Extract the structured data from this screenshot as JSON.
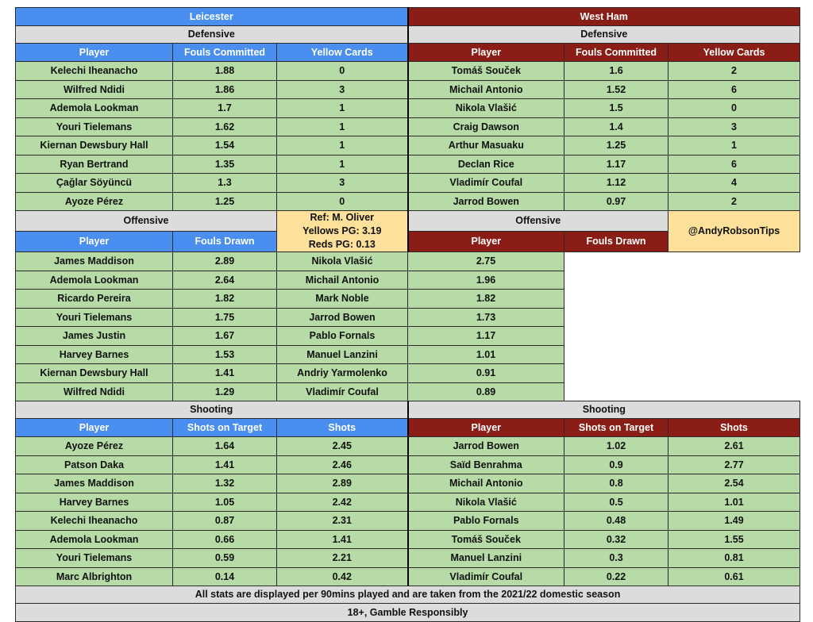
{
  "teams": {
    "home": "Leicester",
    "away": "West Ham"
  },
  "sections": {
    "defensive": "Defensive",
    "offensive": "Offensive",
    "shooting": "Shooting"
  },
  "columns": {
    "player": "Player",
    "fouls_committed": "Fouls Committed",
    "yellow_cards": "Yellow Cards",
    "fouls_drawn": "Fouls Drawn",
    "shots_on_target": "Shots on Target",
    "shots": "Shots"
  },
  "defensive": {
    "home": [
      {
        "player": "Kelechi Iheanacho",
        "fouls": "1.88",
        "yellows": "0"
      },
      {
        "player": "Wilfred Ndidi",
        "fouls": "1.86",
        "yellows": "3"
      },
      {
        "player": "Ademola Lookman",
        "fouls": "1.7",
        "yellows": "1"
      },
      {
        "player": "Youri Tielemans",
        "fouls": "1.62",
        "yellows": "1"
      },
      {
        "player": "Kiernan Dewsbury Hall",
        "fouls": "1.54",
        "yellows": "1"
      },
      {
        "player": "Ryan Bertrand",
        "fouls": "1.35",
        "yellows": "1"
      },
      {
        "player": "Çağlar Söyüncü",
        "fouls": "1.3",
        "yellows": "3"
      },
      {
        "player": "Ayoze Pérez",
        "fouls": "1.25",
        "yellows": "0"
      }
    ],
    "away": [
      {
        "player": "Tomáš Souček",
        "fouls": "1.6",
        "yellows": "2"
      },
      {
        "player": "Michail Antonio",
        "fouls": "1.52",
        "yellows": "6"
      },
      {
        "player": "Nikola Vlašić",
        "fouls": "1.5",
        "yellows": "0"
      },
      {
        "player": "Craig Dawson",
        "fouls": "1.4",
        "yellows": "3"
      },
      {
        "player": "Arthur Masuaku",
        "fouls": "1.25",
        "yellows": "1"
      },
      {
        "player": "Declan Rice",
        "fouls": "1.17",
        "yellows": "6"
      },
      {
        "player": "Vladimír Coufal",
        "fouls": "1.12",
        "yellows": "4"
      },
      {
        "player": "Jarrod Bowen",
        "fouls": "0.97",
        "yellows": "2"
      }
    ]
  },
  "offensive": {
    "home": [
      {
        "player": "James Maddison",
        "drawn": "2.89"
      },
      {
        "player": "Ademola Lookman",
        "drawn": "2.64"
      },
      {
        "player": "Ricardo Pereira",
        "drawn": "1.82"
      },
      {
        "player": "Youri Tielemans",
        "drawn": "1.75"
      },
      {
        "player": "James Justin",
        "drawn": "1.67"
      },
      {
        "player": "Harvey Barnes",
        "drawn": "1.53"
      },
      {
        "player": "Kiernan Dewsbury Hall",
        "drawn": "1.41"
      },
      {
        "player": "Wilfred Ndidi",
        "drawn": "1.29"
      }
    ],
    "away": [
      {
        "player": "Nikola Vlašić",
        "drawn": "2.75"
      },
      {
        "player": "Michail Antonio",
        "drawn": "1.96"
      },
      {
        "player": "Mark Noble",
        "drawn": "1.82"
      },
      {
        "player": "Jarrod Bowen",
        "drawn": "1.73"
      },
      {
        "player": "Pablo Fornals",
        "drawn": "1.17"
      },
      {
        "player": "Manuel Lanzini",
        "drawn": "1.01"
      },
      {
        "player": "Andriy Yarmolenko",
        "drawn": "0.91"
      },
      {
        "player": "Vladimír Coufal",
        "drawn": "0.89"
      }
    ]
  },
  "shooting": {
    "home": [
      {
        "player": "Ayoze Pérez",
        "sot": "1.64",
        "shots": "2.45"
      },
      {
        "player": "Patson Daka",
        "sot": "1.41",
        "shots": "2.46"
      },
      {
        "player": "James Maddison",
        "sot": "1.32",
        "shots": "2.89"
      },
      {
        "player": "Harvey Barnes",
        "sot": "1.05",
        "shots": "2.42"
      },
      {
        "player": "Kelechi Iheanacho",
        "sot": "0.87",
        "shots": "2.31"
      },
      {
        "player": "Ademola Lookman",
        "sot": "0.66",
        "shots": "1.41"
      },
      {
        "player": "Youri Tielemans",
        "sot": "0.59",
        "shots": "2.21"
      },
      {
        "player": "Marc Albrighton",
        "sot": "0.14",
        "shots": "0.42"
      }
    ],
    "away": [
      {
        "player": "Jarrod Bowen",
        "sot": "1.02",
        "shots": "2.61"
      },
      {
        "player": "Saïd Benrahma",
        "sot": "0.9",
        "shots": "2.77"
      },
      {
        "player": "Michail Antonio",
        "sot": "0.8",
        "shots": "2.54"
      },
      {
        "player": "Nikola Vlašić",
        "sot": "0.5",
        "shots": "1.01"
      },
      {
        "player": "Pablo Fornals",
        "sot": "0.48",
        "shots": "1.49"
      },
      {
        "player": "Tomáš Souček",
        "sot": "0.32",
        "shots": "1.55"
      },
      {
        "player": "Manuel Lanzini",
        "sot": "0.3",
        "shots": "0.81"
      },
      {
        "player": "Vladimír Coufal",
        "sot": "0.22",
        "shots": "0.61"
      }
    ]
  },
  "referee": {
    "name": "Ref: M. Oliver",
    "yellows": "Yellows PG: 3.19",
    "reds": "Reds PG: 0.13"
  },
  "handle": "@AndyRobsonTips",
  "footer": {
    "note": "All stats are displayed per 90mins played and are taken from the 2021/22 domestic season",
    "disclaimer": "18+, Gamble Responsibly"
  },
  "colors": {
    "home_header": "#4a8ef0",
    "away_header": "#8a1e16",
    "data_cell": "#b7dba6",
    "section_bar": "#dcdcdc",
    "info_box": "#fde19b"
  }
}
